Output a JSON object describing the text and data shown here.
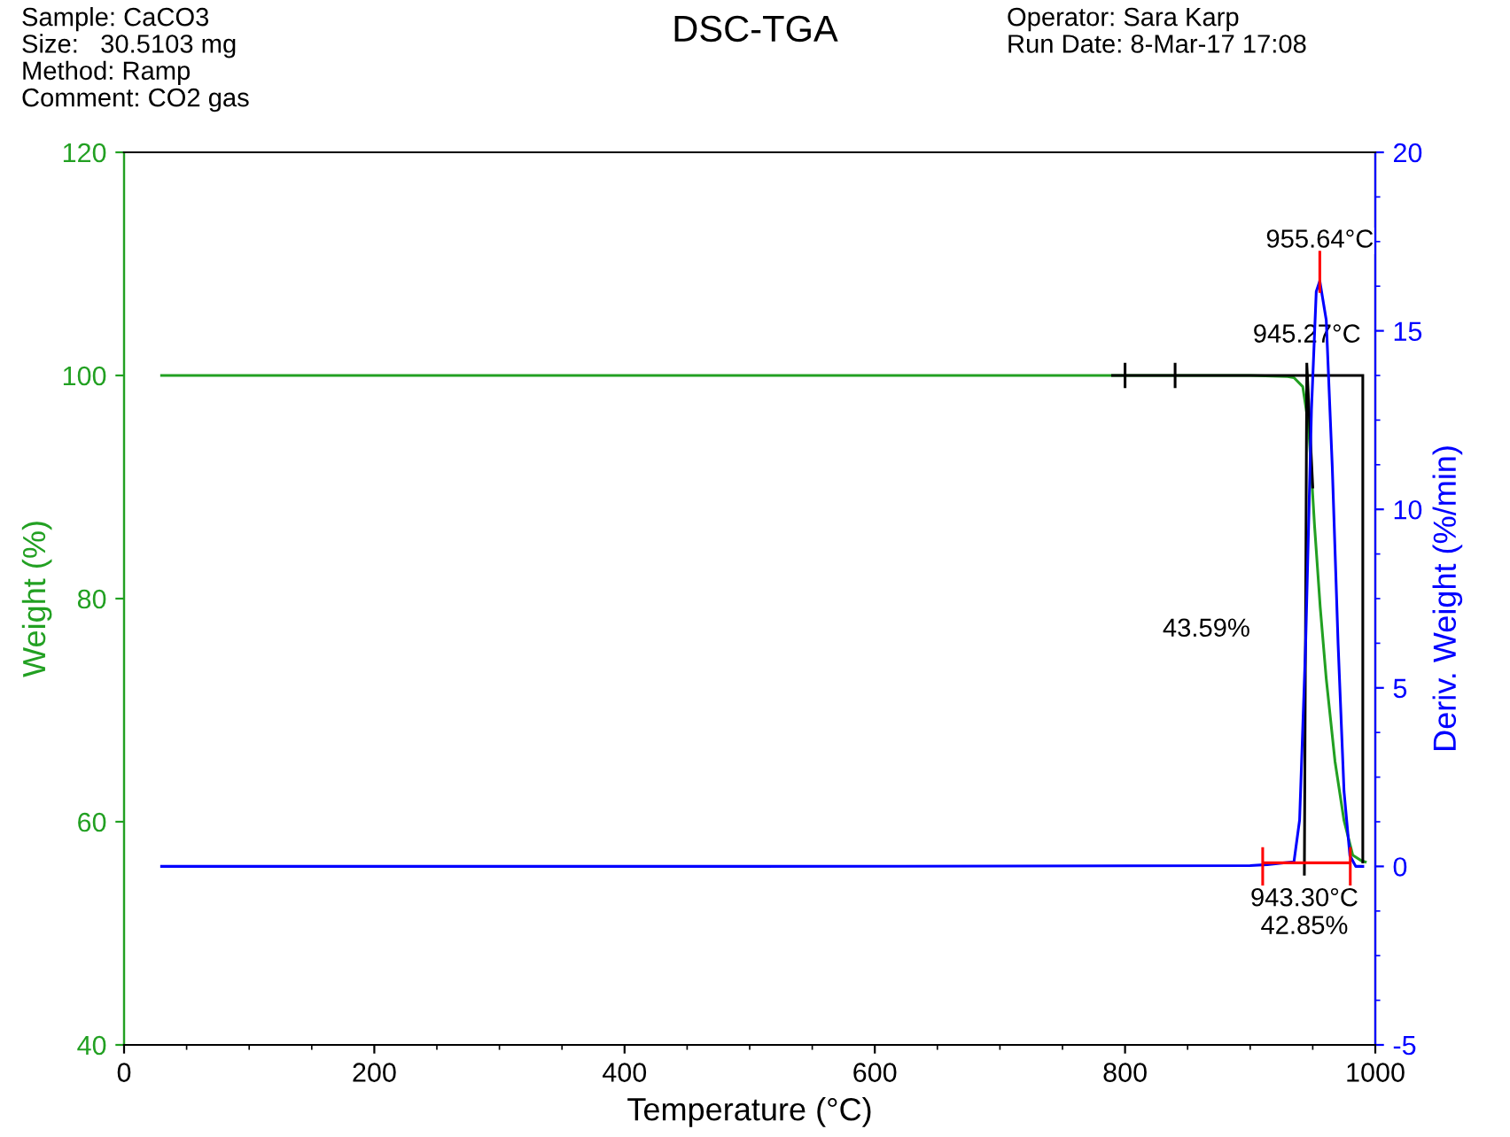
{
  "chart_data": {
    "type": "line",
    "title": "DSC-TGA",
    "xlabel": "Temperature (°C)",
    "ylabel": "Weight (%)",
    "y2label": "Deriv. Weight (%/min)",
    "xlim": [
      0,
      1000
    ],
    "xticks": [
      0,
      200,
      400,
      600,
      800,
      1000
    ],
    "ylim": [
      40,
      120
    ],
    "yticks": [
      40,
      60,
      80,
      100,
      120
    ],
    "y2lim": [
      -5,
      20
    ],
    "y2ticks": [
      -5,
      0,
      5,
      10,
      15,
      20
    ],
    "grid": false,
    "legend": false,
    "series": [
      {
        "axis": "y",
        "color": "#22a022",
        "x": [
          30,
          500,
          800,
          900,
          930,
          935,
          942,
          946.6,
          951.4,
          956,
          960.8,
          967.8,
          975,
          982,
          989,
          992
        ],
        "values": [
          100,
          100,
          100,
          100,
          99.9,
          99.8,
          99.0,
          95.6,
          86.6,
          79.2,
          72.8,
          65.4,
          60.1,
          57.0,
          56.5,
          56.4
        ]
      },
      {
        "axis": "y2",
        "color": "#0000ff",
        "x": [
          30,
          500,
          900,
          913.6,
          935,
          939.5,
          944.3,
          949,
          952.8,
          955.64,
          960.8,
          965.6,
          970.3,
          975,
          979.7,
          984.4,
          990
        ],
        "values": [
          0,
          0,
          0.02,
          0.05,
          0.13,
          1.3,
          6.2,
          12.8,
          16.1,
          16.4,
          15.3,
          11.2,
          6.2,
          2.1,
          0.3,
          0,
          0
        ]
      },
      {
        "axis": "y",
        "color": "#000000",
        "x": [
          790,
          990,
          null,
          800,
          800,
          null,
          840,
          840,
          null,
          945.27,
          943.3,
          null,
          945.27,
          950,
          null,
          990,
          990
        ],
        "values": [
          100,
          100,
          null,
          101,
          99,
          null,
          101,
          99,
          null,
          101,
          55.3,
          null,
          101,
          90,
          null,
          100,
          56.4
        ]
      },
      {
        "axis": "y2",
        "color": "#ff0000",
        "x": [
          910,
          910,
          null,
          910,
          980,
          null,
          980,
          980,
          null,
          955.64,
          955.64
        ],
        "values": [
          -0.5,
          0.5,
          null,
          0.1,
          0.1,
          null,
          -0.5,
          0.5,
          null,
          16.1,
          17.2
        ]
      }
    ],
    "annotations": [
      "Sample: CaCO3\nSize:   30.5103 mg\nMethod: Ramp\nComment: CO2 gas",
      "Operator: Sara Karp\nRun Date: 8-Mar-17 17:08",
      {
        "text": "955.64°C",
        "x": 955.64,
        "y": 109
      },
      {
        "text": "945.27°C",
        "x": 945.27,
        "y": 100.5
      },
      "43.59%",
      {
        "text": "943.30°C\n42.85%",
        "x": 943.3,
        "y": 55
      }
    ]
  }
}
